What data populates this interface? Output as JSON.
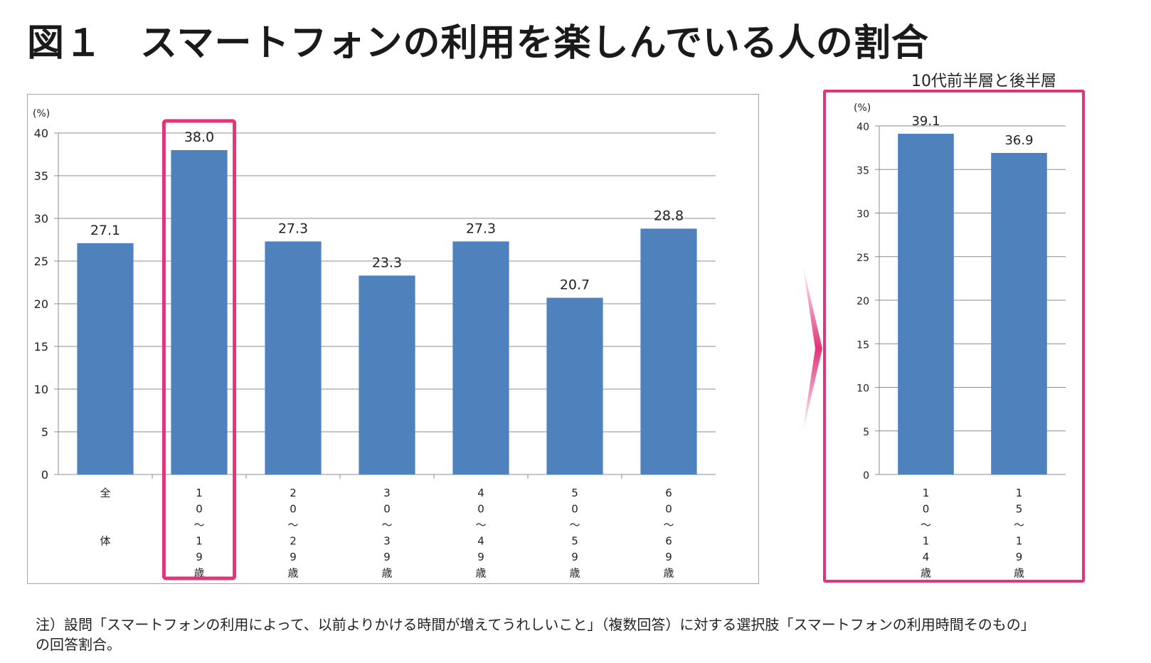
{
  "title": "図１　スマートフォンの利用を楽しんでいる人の割合",
  "right_title": "10代前半層と後半層",
  "footnote": {
    "line1": "注）設問「スマートフォンの利用によって、以前よりかける時間が増えてうれしいこと」（複数回答）に対する選択肢「スマートフォンの利用時間そのもの」",
    "line2": "の回答割合。"
  },
  "colors": {
    "bar": "#4f81bd",
    "highlight": "#e0357a",
    "grid": "#8c8c8c"
  },
  "chart_data": [
    {
      "type": "bar",
      "unit_label": "(%)",
      "ylim": [
        0,
        40
      ],
      "yticks": [
        0,
        5,
        10,
        15,
        20,
        25,
        30,
        35,
        40
      ],
      "grid": true,
      "categories": [
        "全\n\n\n体",
        "1\n0\n〜\n1\n9\n歳",
        "2\n0\n〜\n2\n9\n歳",
        "3\n0\n〜\n3\n9\n歳",
        "4\n0\n〜\n4\n9\n歳",
        "5\n0\n〜\n5\n9\n歳",
        "6\n0\n〜\n6\n9\n歳"
      ],
      "values": [
        27.1,
        38.0,
        27.3,
        23.3,
        27.3,
        20.7,
        28.8
      ],
      "value_labels": [
        "27.1",
        "38.0",
        "27.3",
        "23.3",
        "27.3",
        "20.7",
        "28.8"
      ],
      "highlight_index": 1
    },
    {
      "type": "bar",
      "title": "10代前半層と後半層",
      "unit_label": "(%)",
      "ylim": [
        0,
        40
      ],
      "yticks": [
        0,
        5,
        10,
        15,
        20,
        25,
        30,
        35,
        40
      ],
      "grid": true,
      "categories": [
        "1\n0\n〜\n1\n4\n歳",
        "1\n5\n〜\n1\n9\n歳"
      ],
      "values": [
        39.1,
        36.9
      ],
      "value_labels": [
        "39.1",
        "36.9"
      ]
    }
  ]
}
